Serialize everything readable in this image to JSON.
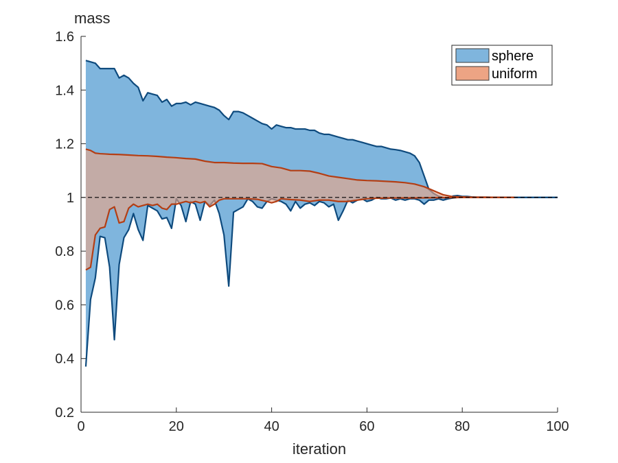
{
  "chart_data": {
    "type": "area",
    "xlabel": "iteration",
    "ylabel": "mass",
    "xlim": [
      0,
      100
    ],
    "ylim": [
      0.2,
      1.6
    ],
    "xticks": [
      0,
      20,
      40,
      60,
      80,
      100
    ],
    "yticks": [
      0.2,
      0.4,
      0.6,
      0.8,
      1,
      1.2,
      1.4,
      1.6
    ],
    "x_tick_labels": [
      "0",
      "20",
      "40",
      "60",
      "80",
      "100"
    ],
    "y_tick_labels": [
      "0.2",
      "0.4",
      "0.6",
      "0.8",
      "1",
      "1.2",
      "1.4",
      "1.6"
    ],
    "reference_line": {
      "y": 1,
      "style": "dashed"
    },
    "grid": false,
    "legend_position": "top-right",
    "series": [
      {
        "name": "sphere",
        "fill_color": "#7FB5DD",
        "edge_color": "#0E4A7D",
        "upper": [
          [
            1,
            1.51
          ],
          [
            2,
            1.505
          ],
          [
            3,
            1.5
          ],
          [
            4,
            1.48
          ],
          [
            5,
            1.48
          ],
          [
            6,
            1.48
          ],
          [
            7,
            1.48
          ],
          [
            8,
            1.445
          ],
          [
            9,
            1.455
          ],
          [
            10,
            1.445
          ],
          [
            11,
            1.425
          ],
          [
            12,
            1.41
          ],
          [
            13,
            1.36
          ],
          [
            14,
            1.39
          ],
          [
            15,
            1.385
          ],
          [
            16,
            1.38
          ],
          [
            17,
            1.355
          ],
          [
            18,
            1.365
          ],
          [
            19,
            1.34
          ],
          [
            20,
            1.35
          ],
          [
            21,
            1.35
          ],
          [
            22,
            1.355
          ],
          [
            23,
            1.345
          ],
          [
            24,
            1.355
          ],
          [
            25,
            1.35
          ],
          [
            26,
            1.345
          ],
          [
            27,
            1.34
          ],
          [
            28,
            1.335
          ],
          [
            29,
            1.325
          ],
          [
            30,
            1.305
          ],
          [
            31,
            1.29
          ],
          [
            32,
            1.32
          ],
          [
            33,
            1.32
          ],
          [
            34,
            1.315
          ],
          [
            35,
            1.305
          ],
          [
            36,
            1.295
          ],
          [
            37,
            1.285
          ],
          [
            38,
            1.275
          ],
          [
            39,
            1.27
          ],
          [
            40,
            1.255
          ],
          [
            41,
            1.27
          ],
          [
            42,
            1.265
          ],
          [
            43,
            1.26
          ],
          [
            44,
            1.26
          ],
          [
            45,
            1.255
          ],
          [
            46,
            1.255
          ],
          [
            47,
            1.255
          ],
          [
            48,
            1.25
          ],
          [
            49,
            1.25
          ],
          [
            50,
            1.24
          ],
          [
            51,
            1.235
          ],
          [
            52,
            1.235
          ],
          [
            53,
            1.23
          ],
          [
            54,
            1.225
          ],
          [
            55,
            1.22
          ],
          [
            56,
            1.215
          ],
          [
            57,
            1.215
          ],
          [
            58,
            1.21
          ],
          [
            59,
            1.205
          ],
          [
            60,
            1.2
          ],
          [
            61,
            1.195
          ],
          [
            62,
            1.19
          ],
          [
            63,
            1.19
          ],
          [
            64,
            1.185
          ],
          [
            65,
            1.18
          ],
          [
            66,
            1.178
          ],
          [
            67,
            1.175
          ],
          [
            68,
            1.17
          ],
          [
            69,
            1.165
          ],
          [
            70,
            1.155
          ],
          [
            71,
            1.13
          ],
          [
            72,
            1.08
          ],
          [
            73,
            1.03
          ],
          [
            74,
            1.015
          ],
          [
            75,
            1.005
          ],
          [
            76,
            1.0
          ],
          [
            77,
            0.995
          ],
          [
            78,
            1.005
          ],
          [
            79,
            1.007
          ],
          [
            80,
            1.004
          ],
          [
            81,
            1.004
          ],
          [
            82,
            1.002
          ],
          [
            83,
            1.001
          ],
          [
            84,
            1.001
          ],
          [
            85,
            1.001
          ],
          [
            90,
            1.0
          ],
          [
            95,
            1.0
          ],
          [
            100,
            1.0
          ]
        ],
        "lower": [
          [
            1,
            0.37
          ],
          [
            2,
            0.62
          ],
          [
            3,
            0.7
          ],
          [
            4,
            0.855
          ],
          [
            5,
            0.85
          ],
          [
            6,
            0.74
          ],
          [
            7,
            0.47
          ],
          [
            8,
            0.75
          ],
          [
            9,
            0.85
          ],
          [
            10,
            0.88
          ],
          [
            11,
            0.94
          ],
          [
            12,
            0.88
          ],
          [
            13,
            0.84
          ],
          [
            14,
            0.97
          ],
          [
            15,
            0.96
          ],
          [
            16,
            0.95
          ],
          [
            17,
            0.92
          ],
          [
            18,
            0.925
          ],
          [
            19,
            0.885
          ],
          [
            20,
            0.995
          ],
          [
            21,
            0.97
          ],
          [
            22,
            0.91
          ],
          [
            23,
            0.985
          ],
          [
            24,
            0.975
          ],
          [
            25,
            0.915
          ],
          [
            26,
            0.985
          ],
          [
            27,
            0.97
          ],
          [
            28,
            0.99
          ],
          [
            29,
            0.94
          ],
          [
            30,
            0.86
          ],
          [
            31,
            0.67
          ],
          [
            32,
            0.945
          ],
          [
            33,
            0.955
          ],
          [
            34,
            0.965
          ],
          [
            35,
            0.995
          ],
          [
            36,
            0.985
          ],
          [
            37,
            0.965
          ],
          [
            38,
            0.96
          ],
          [
            39,
            0.985
          ],
          [
            40,
            0.995
          ],
          [
            41,
            0.99
          ],
          [
            42,
            0.985
          ],
          [
            43,
            0.975
          ],
          [
            44,
            0.95
          ],
          [
            45,
            0.985
          ],
          [
            46,
            0.96
          ],
          [
            47,
            0.975
          ],
          [
            48,
            0.98
          ],
          [
            49,
            0.97
          ],
          [
            50,
            0.985
          ],
          [
            51,
            0.98
          ],
          [
            52,
            0.965
          ],
          [
            53,
            0.975
          ],
          [
            54,
            0.915
          ],
          [
            55,
            0.95
          ],
          [
            56,
            0.99
          ],
          [
            57,
            0.98
          ],
          [
            58,
            0.99
          ],
          [
            59,
            0.995
          ],
          [
            60,
            0.985
          ],
          [
            61,
            0.99
          ],
          [
            62,
            1.0
          ],
          [
            63,
            0.995
          ],
          [
            64,
            0.995
          ],
          [
            65,
            0.998
          ],
          [
            66,
            0.99
          ],
          [
            67,
            0.995
          ],
          [
            68,
            0.99
          ],
          [
            69,
            0.995
          ],
          [
            70,
            0.995
          ],
          [
            71,
            0.99
          ],
          [
            72,
            0.975
          ],
          [
            73,
            0.99
          ],
          [
            74,
            0.99
          ],
          [
            75,
            0.995
          ],
          [
            76,
            0.99
          ],
          [
            77,
            0.995
          ],
          [
            78,
            0.998
          ],
          [
            79,
            1.0
          ],
          [
            80,
            1.0
          ],
          [
            90,
            1.0
          ],
          [
            100,
            1.0
          ]
        ]
      },
      {
        "name": "uniform",
        "fill_color": "#EDA484",
        "edge_color": "#B43E14",
        "upper": [
          [
            1,
            1.18
          ],
          [
            2,
            1.175
          ],
          [
            3,
            1.165
          ],
          [
            4,
            1.163
          ],
          [
            5,
            1.162
          ],
          [
            6,
            1.161
          ],
          [
            8,
            1.16
          ],
          [
            10,
            1.158
          ],
          [
            12,
            1.156
          ],
          [
            14,
            1.155
          ],
          [
            16,
            1.153
          ],
          [
            18,
            1.15
          ],
          [
            20,
            1.148
          ],
          [
            22,
            1.145
          ],
          [
            24,
            1.143
          ],
          [
            26,
            1.135
          ],
          [
            28,
            1.13
          ],
          [
            30,
            1.13
          ],
          [
            32,
            1.128
          ],
          [
            34,
            1.127
          ],
          [
            36,
            1.127
          ],
          [
            38,
            1.126
          ],
          [
            40,
            1.115
          ],
          [
            42,
            1.11
          ],
          [
            44,
            1.1
          ],
          [
            46,
            1.1
          ],
          [
            48,
            1.098
          ],
          [
            50,
            1.09
          ],
          [
            52,
            1.08
          ],
          [
            54,
            1.075
          ],
          [
            56,
            1.07
          ],
          [
            58,
            1.065
          ],
          [
            60,
            1.063
          ],
          [
            62,
            1.062
          ],
          [
            64,
            1.06
          ],
          [
            66,
            1.058
          ],
          [
            68,
            1.055
          ],
          [
            70,
            1.05
          ],
          [
            72,
            1.04
          ],
          [
            74,
            1.025
          ],
          [
            76,
            1.01
          ],
          [
            78,
            1.003
          ],
          [
            80,
            1.002
          ],
          [
            82,
            1.001
          ],
          [
            85,
            1.001
          ],
          [
            88,
            1.0
          ],
          [
            91,
            1.0
          ]
        ],
        "lower": [
          [
            1,
            0.73
          ],
          [
            2,
            0.74
          ],
          [
            3,
            0.86
          ],
          [
            4,
            0.885
          ],
          [
            5,
            0.89
          ],
          [
            6,
            0.955
          ],
          [
            7,
            0.965
          ],
          [
            8,
            0.905
          ],
          [
            9,
            0.91
          ],
          [
            10,
            0.96
          ],
          [
            11,
            0.975
          ],
          [
            12,
            0.965
          ],
          [
            13,
            0.97
          ],
          [
            14,
            0.975
          ],
          [
            15,
            0.97
          ],
          [
            16,
            0.975
          ],
          [
            17,
            0.96
          ],
          [
            18,
            0.955
          ],
          [
            19,
            0.975
          ],
          [
            20,
            0.975
          ],
          [
            21,
            0.98
          ],
          [
            22,
            0.985
          ],
          [
            23,
            0.98
          ],
          [
            24,
            0.985
          ],
          [
            25,
            0.98
          ],
          [
            26,
            0.985
          ],
          [
            27,
            0.965
          ],
          [
            28,
            0.975
          ],
          [
            29,
            0.99
          ],
          [
            30,
            0.995
          ],
          [
            31,
            0.995
          ],
          [
            33,
            0.995
          ],
          [
            35,
            0.995
          ],
          [
            37,
            0.993
          ],
          [
            39,
            0.985
          ],
          [
            40,
            0.98
          ],
          [
            41,
            0.985
          ],
          [
            42,
            0.995
          ],
          [
            44,
            0.992
          ],
          [
            46,
            0.99
          ],
          [
            48,
            0.985
          ],
          [
            50,
            0.99
          ],
          [
            52,
            0.99
          ],
          [
            54,
            0.985
          ],
          [
            56,
            0.985
          ],
          [
            58,
            0.99
          ],
          [
            60,
            0.995
          ],
          [
            62,
            0.997
          ],
          [
            65,
            0.998
          ],
          [
            70,
            0.998
          ],
          [
            75,
            0.999
          ],
          [
            80,
            1.0
          ],
          [
            91,
            1.0
          ]
        ]
      }
    ]
  }
}
